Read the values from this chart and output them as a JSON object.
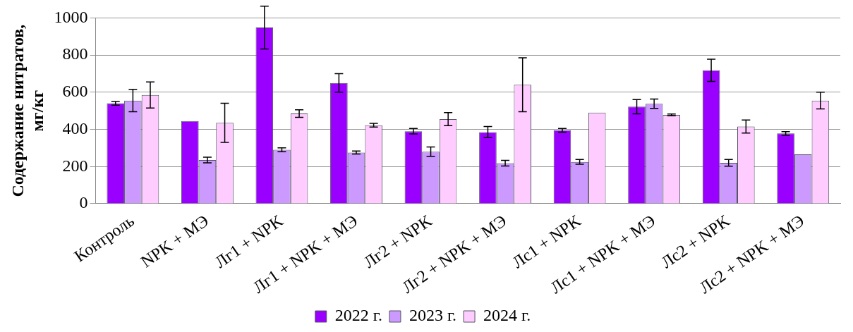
{
  "chart_data": {
    "type": "bar",
    "ylabel": "Содержание нитратов, мг/кг",
    "categories": [
      "Контроль",
      "NPK + МЭ",
      "Лг1 + NPK",
      "Лг1 + NPK + МЭ",
      "Лг2 + NPK",
      "Лг2 + NPK + МЭ",
      "Лс1 + NPK",
      "Лс1 + NPK + МЭ",
      "Лс2 + NPK",
      "Лс2 + NPK + МЭ"
    ],
    "series": [
      {
        "name": "2022 г.",
        "color": "#9900ff",
        "values": [
          540,
          445,
          948,
          650,
          390,
          385,
          395,
          522,
          718,
          378
        ],
        "errors": [
          10,
          null,
          115,
          50,
          15,
          30,
          10,
          38,
          60,
          10
        ]
      },
      {
        "name": "2023 г.",
        "color": "#cc99ff",
        "values": [
          555,
          235,
          290,
          275,
          280,
          218,
          225,
          538,
          220,
          265
        ],
        "errors": [
          60,
          15,
          10,
          8,
          25,
          15,
          13,
          25,
          18,
          null
        ]
      },
      {
        "name": "2024 г.",
        "color": "#ffccff",
        "values": [
          585,
          435,
          485,
          422,
          455,
          640,
          490,
          478,
          415,
          555
        ],
        "errors": [
          70,
          105,
          20,
          10,
          35,
          145,
          null,
          5,
          35,
          45
        ]
      }
    ],
    "ylim": [
      0,
      1000
    ],
    "yticks": [
      0,
      200,
      400,
      600,
      800,
      1000
    ],
    "grid": "y",
    "legend": "bottom"
  }
}
